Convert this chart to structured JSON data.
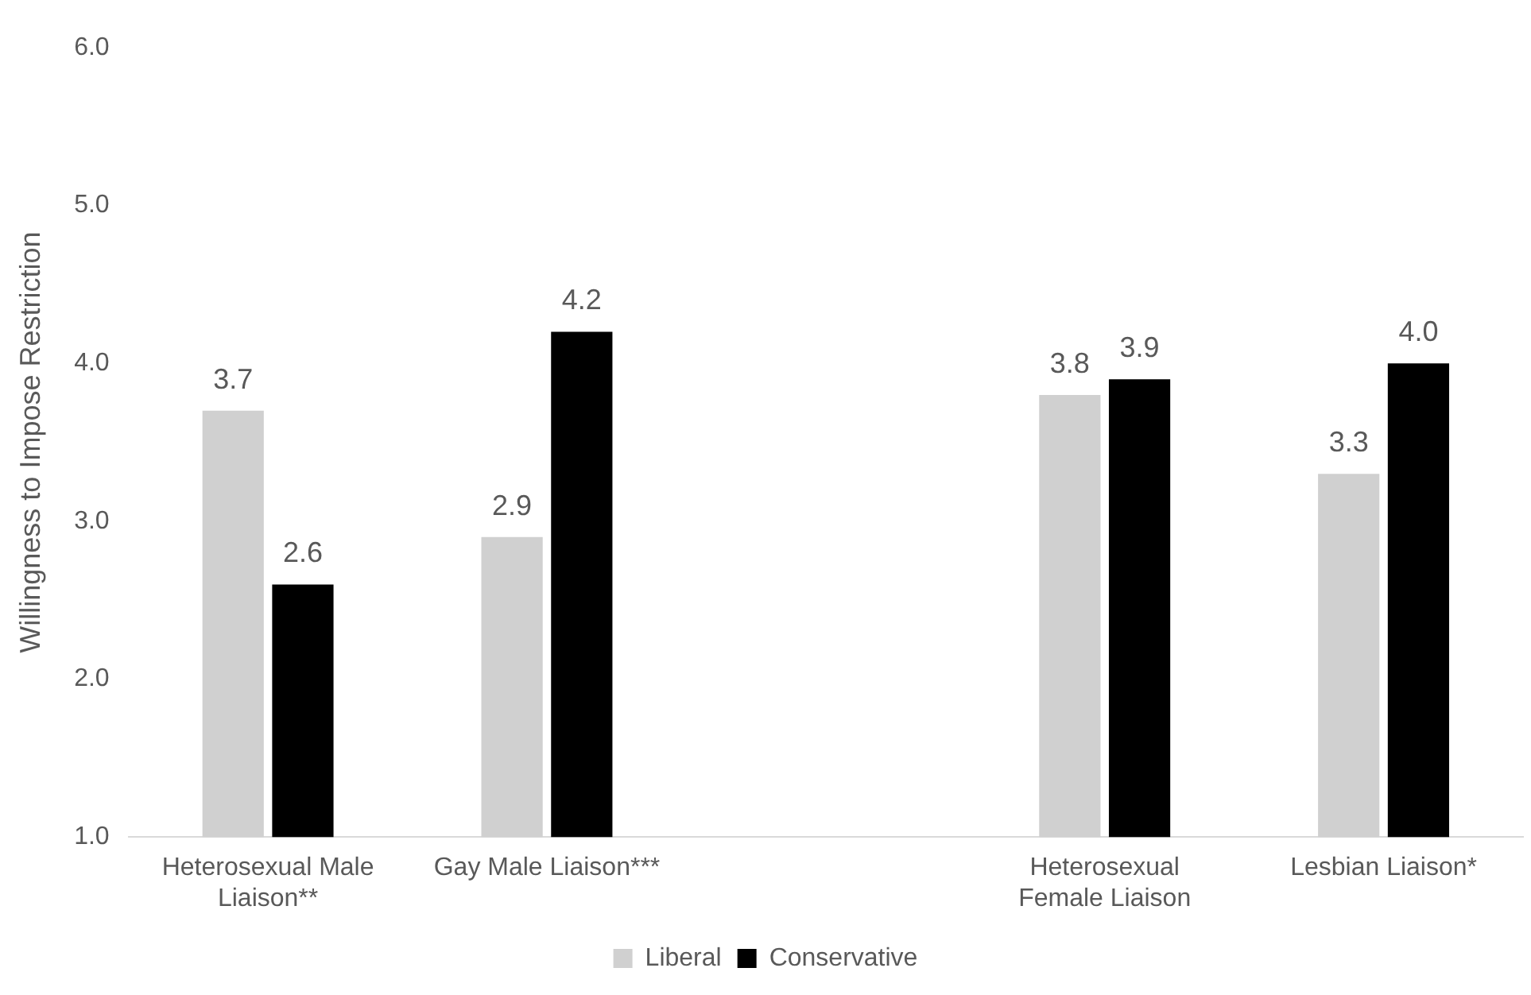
{
  "chart_data": {
    "type": "bar",
    "ylabel": "Willingness to Impose Restriction",
    "categories": [
      "Heterosexual Male Liaison**",
      "Gay Male Liaison***",
      null,
      "Heterosexual Female Liaison",
      "Lesbian Liaison*"
    ],
    "series": [
      {
        "name": "Liberal",
        "color": "#d0d0d0",
        "values": [
          3.7,
          2.9,
          null,
          3.8,
          3.3
        ],
        "value_labels": [
          "3.7",
          "2.9",
          null,
          "3.8",
          "3.3"
        ]
      },
      {
        "name": "Conservative",
        "color": "#000000",
        "values": [
          2.6,
          4.2,
          null,
          3.9,
          4.0
        ],
        "value_labels": [
          "2.6",
          "4.2",
          null,
          "3.9",
          "4.0"
        ]
      }
    ],
    "ylim": [
      1,
      6
    ],
    "yticks": [
      {
        "value": 1,
        "label": "1.0"
      },
      {
        "value": 2,
        "label": "2.0"
      },
      {
        "value": 3,
        "label": "3.0"
      },
      {
        "value": 4,
        "label": "4.0"
      },
      {
        "value": 5,
        "label": "5.0"
      },
      {
        "value": 6,
        "label": "6.0"
      }
    ],
    "grid": false,
    "legend": "bottom"
  }
}
